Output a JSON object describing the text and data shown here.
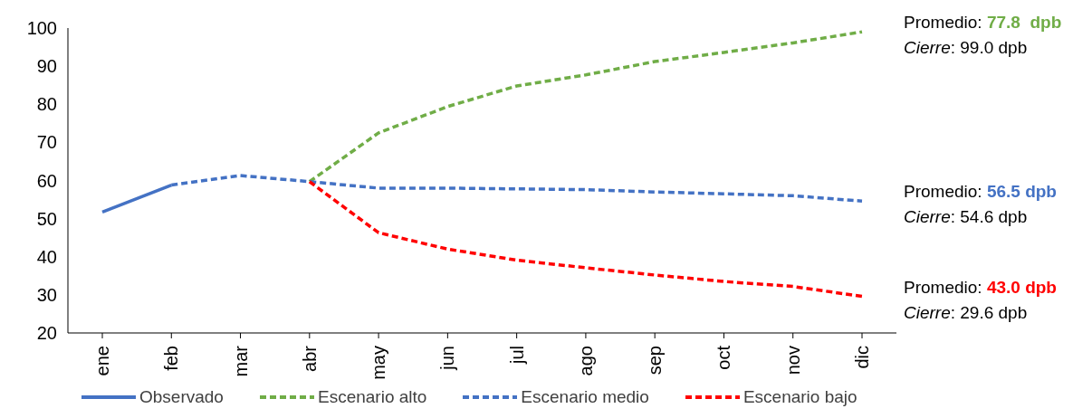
{
  "chart_data": {
    "type": "line",
    "categories": [
      "ene",
      "feb",
      "mar",
      "abr",
      "may",
      "jun",
      "jul",
      "ago",
      "sep",
      "oct",
      "nov",
      "dic"
    ],
    "ylim": [
      20,
      100
    ],
    "yticks": [
      20,
      30,
      40,
      50,
      60,
      70,
      80,
      90,
      100
    ],
    "grid": false,
    "legend": "bottom",
    "marker": "none",
    "series": [
      {
        "name": "Observado",
        "color": "#4472c4",
        "line_style": "solid",
        "values": [
          51.7,
          58.8,
          null,
          null,
          null,
          null,
          null,
          null,
          null,
          null,
          null,
          null
        ]
      },
      {
        "name": "Escenario alto",
        "color": "#70ad47",
        "line_style": "dashed",
        "values": [
          null,
          null,
          null,
          59.7,
          72.5,
          79.4,
          84.8,
          87.7,
          91.2,
          93.6,
          96.1,
          99.0
        ]
      },
      {
        "name": "Escenario medio",
        "color": "#4472c4",
        "line_style": "dashed",
        "values": [
          null,
          58.8,
          61.3,
          59.7,
          58,
          58,
          57.8,
          57.6,
          57,
          56.5,
          56,
          54.6
        ]
      },
      {
        "name": "Escenario bajo",
        "color": "#ff0000",
        "line_style": "dashed",
        "values": [
          null,
          null,
          null,
          59.7,
          46.3,
          42,
          39.1,
          37.1,
          35.2,
          33.5,
          32.2,
          29.6
        ]
      }
    ],
    "annotations": [
      "Promedio: 77.8  dpb",
      "Cierre: 99.0 dpb",
      "Promedio: 56.5 dpb",
      "Cierre: 54.6 dpb",
      "Promedio: 43.0 dpb",
      "Cierre: 29.6 dpb"
    ]
  }
}
